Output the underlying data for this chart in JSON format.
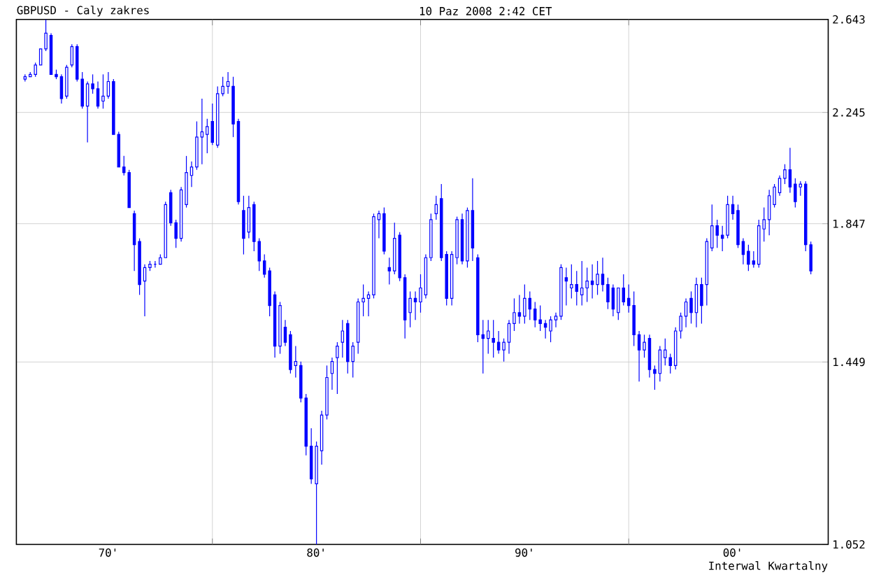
{
  "chart_data": {
    "type": "candlestick",
    "title": "GBPUSD - Caly zakres",
    "subtitle": "10 Paz 2008 2:42 CET",
    "annotations": [
      "Interwal Kwartalny"
    ],
    "color": "#0000ff",
    "log": true,
    "grid": true,
    "xlim": [
      "1970-08",
      "2009-08"
    ],
    "xticks": [
      {
        "value": "1975",
        "label": "70'"
      },
      {
        "value": "1980",
        "label": null
      },
      {
        "value": "1985",
        "label": "80'"
      },
      {
        "value": "1990",
        "label": null
      },
      {
        "value": "1995",
        "label": "90'"
      },
      {
        "value": "2000",
        "label": null
      },
      {
        "value": "2005",
        "label": "00'"
      }
    ],
    "ylim": [
      1.052,
      2.643
    ],
    "yticks": [
      1.052,
      1.449,
      1.847,
      2.245,
      2.643
    ],
    "x": [
      "1971-01",
      "1971-04",
      "1971-07",
      "1971-10",
      "1972-01",
      "1972-04",
      "1972-07",
      "1972-10",
      "1973-01",
      "1973-04",
      "1973-07",
      "1973-10",
      "1974-01",
      "1974-04",
      "1974-07",
      "1974-10",
      "1975-01",
      "1975-04",
      "1975-07",
      "1975-10",
      "1976-01",
      "1976-04",
      "1976-07",
      "1976-10",
      "1977-01",
      "1977-04",
      "1977-07",
      "1977-10",
      "1978-01",
      "1978-04",
      "1978-07",
      "1978-10",
      "1979-01",
      "1979-04",
      "1979-07",
      "1979-10",
      "1980-01",
      "1980-04",
      "1980-07",
      "1980-10",
      "1981-01",
      "1981-04",
      "1981-07",
      "1981-10",
      "1982-01",
      "1982-04",
      "1982-07",
      "1982-10",
      "1983-01",
      "1983-04",
      "1983-07",
      "1983-10",
      "1984-01",
      "1984-04",
      "1984-07",
      "1984-10",
      "1985-01",
      "1985-04",
      "1985-07",
      "1985-10",
      "1986-01",
      "1986-04",
      "1986-07",
      "1986-10",
      "1987-01",
      "1987-04",
      "1987-07",
      "1987-10",
      "1988-01",
      "1988-04",
      "1988-07",
      "1988-10",
      "1989-01",
      "1989-04",
      "1989-07",
      "1989-10",
      "1990-01",
      "1990-04",
      "1990-07",
      "1990-10",
      "1991-01",
      "1991-04",
      "1991-07",
      "1991-10",
      "1992-01",
      "1992-04",
      "1992-07",
      "1992-10",
      "1993-01",
      "1993-04",
      "1993-07",
      "1993-10",
      "1994-01",
      "1994-04",
      "1994-07",
      "1994-10",
      "1995-01",
      "1995-04",
      "1995-07",
      "1995-10",
      "1996-01",
      "1996-04",
      "1996-07",
      "1996-10",
      "1997-01",
      "1997-04",
      "1997-07",
      "1997-10",
      "1998-01",
      "1998-04",
      "1998-07",
      "1998-10",
      "1999-01",
      "1999-04",
      "1999-07",
      "1999-10",
      "2000-01",
      "2000-04",
      "2000-07",
      "2000-10",
      "2001-01",
      "2001-04",
      "2001-07",
      "2001-10",
      "2002-01",
      "2002-04",
      "2002-07",
      "2002-10",
      "2003-01",
      "2003-04",
      "2003-07",
      "2003-10",
      "2004-01",
      "2004-04",
      "2004-07",
      "2004-10",
      "2005-01",
      "2005-04",
      "2005-07",
      "2005-10",
      "2006-01",
      "2006-04",
      "2006-07",
      "2006-10",
      "2007-01",
      "2007-04",
      "2007-07",
      "2007-10",
      "2008-01",
      "2008-04",
      "2008-07",
      "2008-10"
    ],
    "ohlc": [
      [
        2.38,
        2.4,
        2.37,
        2.39
      ],
      [
        2.39,
        2.41,
        2.39,
        2.4
      ],
      [
        2.4,
        2.45,
        2.39,
        2.44
      ],
      [
        2.44,
        2.51,
        2.44,
        2.51
      ],
      [
        2.51,
        2.643,
        2.5,
        2.58
      ],
      [
        2.57,
        2.58,
        2.4,
        2.4
      ],
      [
        2.4,
        2.42,
        2.38,
        2.39
      ],
      [
        2.39,
        2.4,
        2.28,
        2.3
      ],
      [
        2.31,
        2.44,
        2.3,
        2.43
      ],
      [
        2.44,
        2.53,
        2.43,
        2.52
      ],
      [
        2.52,
        2.53,
        2.37,
        2.38
      ],
      [
        2.38,
        2.41,
        2.26,
        2.27
      ],
      [
        2.27,
        2.37,
        2.13,
        2.36
      ],
      [
        2.36,
        2.4,
        2.32,
        2.34
      ],
      [
        2.34,
        2.37,
        2.26,
        2.27
      ],
      [
        2.29,
        2.4,
        2.26,
        2.31
      ],
      [
        2.31,
        2.41,
        2.3,
        2.37
      ],
      [
        2.37,
        2.38,
        2.16,
        2.16
      ],
      [
        2.16,
        2.17,
        2.04,
        2.04
      ],
      [
        2.04,
        2.08,
        2.01,
        2.02
      ],
      [
        2.02,
        2.03,
        1.9,
        1.9
      ],
      [
        1.88,
        1.89,
        1.7,
        1.78
      ],
      [
        1.79,
        1.8,
        1.63,
        1.66
      ],
      [
        1.67,
        1.72,
        1.57,
        1.71
      ],
      [
        1.71,
        1.73,
        1.7,
        1.72
      ],
      [
        1.72,
        1.73,
        1.71,
        1.72
      ],
      [
        1.72,
        1.75,
        1.72,
        1.74
      ],
      [
        1.74,
        1.92,
        1.74,
        1.91
      ],
      [
        1.95,
        1.96,
        1.84,
        1.85
      ],
      [
        1.85,
        1.86,
        1.77,
        1.8
      ],
      [
        1.8,
        1.97,
        1.79,
        1.96
      ],
      [
        1.91,
        2.08,
        1.9,
        2.02
      ],
      [
        2.01,
        2.06,
        1.97,
        2.04
      ],
      [
        2.04,
        2.21,
        2.03,
        2.15
      ],
      [
        2.15,
        2.3,
        2.05,
        2.17
      ],
      [
        2.16,
        2.22,
        2.09,
        2.19
      ],
      [
        2.21,
        2.28,
        2.12,
        2.13
      ],
      [
        2.12,
        2.35,
        2.11,
        2.32
      ],
      [
        2.32,
        2.39,
        2.31,
        2.35
      ],
      [
        2.35,
        2.41,
        2.32,
        2.37
      ],
      [
        2.35,
        2.39,
        2.15,
        2.2
      ],
      [
        2.21,
        2.22,
        1.91,
        1.92
      ],
      [
        1.89,
        1.94,
        1.75,
        1.8
      ],
      [
        1.82,
        1.94,
        1.8,
        1.9
      ],
      [
        1.91,
        1.92,
        1.76,
        1.79
      ],
      [
        1.79,
        1.8,
        1.7,
        1.73
      ],
      [
        1.73,
        1.75,
        1.68,
        1.69
      ],
      [
        1.7,
        1.71,
        1.57,
        1.6
      ],
      [
        1.63,
        1.64,
        1.46,
        1.49
      ],
      [
        1.49,
        1.61,
        1.47,
        1.6
      ],
      [
        1.54,
        1.56,
        1.49,
        1.5
      ],
      [
        1.52,
        1.53,
        1.42,
        1.43
      ],
      [
        1.44,
        1.49,
        1.41,
        1.45
      ],
      [
        1.44,
        1.45,
        1.35,
        1.36
      ],
      [
        1.36,
        1.37,
        1.23,
        1.25
      ],
      [
        1.25,
        1.29,
        1.17,
        1.18
      ],
      [
        1.17,
        1.26,
        1.052,
        1.25
      ],
      [
        1.24,
        1.33,
        1.21,
        1.32
      ],
      [
        1.32,
        1.44,
        1.31,
        1.41
      ],
      [
        1.42,
        1.46,
        1.38,
        1.45
      ],
      [
        1.46,
        1.5,
        1.37,
        1.49
      ],
      [
        1.5,
        1.56,
        1.46,
        1.53
      ],
      [
        1.55,
        1.56,
        1.42,
        1.45
      ],
      [
        1.45,
        1.5,
        1.41,
        1.49
      ],
      [
        1.5,
        1.62,
        1.47,
        1.61
      ],
      [
        1.61,
        1.66,
        1.57,
        1.62
      ],
      [
        1.62,
        1.64,
        1.57,
        1.63
      ],
      [
        1.63,
        1.88,
        1.62,
        1.87
      ],
      [
        1.86,
        1.89,
        1.8,
        1.88
      ],
      [
        1.88,
        1.9,
        1.75,
        1.76
      ],
      [
        1.71,
        1.74,
        1.66,
        1.7
      ],
      [
        1.7,
        1.85,
        1.69,
        1.8
      ],
      [
        1.81,
        1.82,
        1.67,
        1.68
      ],
      [
        1.68,
        1.69,
        1.51,
        1.56
      ],
      [
        1.58,
        1.64,
        1.54,
        1.62
      ],
      [
        1.62,
        1.64,
        1.56,
        1.61
      ],
      [
        1.61,
        1.69,
        1.58,
        1.65
      ],
      [
        1.63,
        1.75,
        1.62,
        1.74
      ],
      [
        1.74,
        1.88,
        1.73,
        1.86
      ],
      [
        1.88,
        1.94,
        1.86,
        1.91
      ],
      [
        1.93,
        1.98,
        1.73,
        1.74
      ],
      [
        1.75,
        1.76,
        1.6,
        1.62
      ],
      [
        1.62,
        1.76,
        1.6,
        1.75
      ],
      [
        1.74,
        1.87,
        1.72,
        1.86
      ],
      [
        1.86,
        1.88,
        1.72,
        1.73
      ],
      [
        1.73,
        1.9,
        1.71,
        1.89
      ],
      [
        1.89,
        2.0,
        1.73,
        1.77
      ],
      [
        1.74,
        1.75,
        1.5,
        1.52
      ],
      [
        1.52,
        1.56,
        1.42,
        1.51
      ],
      [
        1.51,
        1.56,
        1.47,
        1.53
      ],
      [
        1.51,
        1.56,
        1.46,
        1.5
      ],
      [
        1.5,
        1.53,
        1.47,
        1.48
      ],
      [
        1.48,
        1.51,
        1.45,
        1.5
      ],
      [
        1.5,
        1.56,
        1.47,
        1.55
      ],
      [
        1.55,
        1.62,
        1.53,
        1.58
      ],
      [
        1.58,
        1.63,
        1.55,
        1.57
      ],
      [
        1.57,
        1.66,
        1.55,
        1.62
      ],
      [
        1.62,
        1.64,
        1.56,
        1.59
      ],
      [
        1.59,
        1.61,
        1.54,
        1.56
      ],
      [
        1.56,
        1.6,
        1.53,
        1.55
      ],
      [
        1.55,
        1.56,
        1.51,
        1.54
      ],
      [
        1.53,
        1.57,
        1.5,
        1.56
      ],
      [
        1.56,
        1.58,
        1.54,
        1.57
      ],
      [
        1.57,
        1.72,
        1.56,
        1.71
      ],
      [
        1.68,
        1.71,
        1.6,
        1.67
      ],
      [
        1.65,
        1.72,
        1.62,
        1.66
      ],
      [
        1.66,
        1.7,
        1.6,
        1.64
      ],
      [
        1.63,
        1.73,
        1.6,
        1.65
      ],
      [
        1.65,
        1.71,
        1.61,
        1.67
      ],
      [
        1.67,
        1.72,
        1.62,
        1.66
      ],
      [
        1.66,
        1.73,
        1.63,
        1.69
      ],
      [
        1.69,
        1.74,
        1.64,
        1.66
      ],
      [
        1.66,
        1.68,
        1.59,
        1.61
      ],
      [
        1.65,
        1.66,
        1.57,
        1.59
      ],
      [
        1.58,
        1.65,
        1.56,
        1.65
      ],
      [
        1.65,
        1.69,
        1.6,
        1.61
      ],
      [
        1.62,
        1.66,
        1.58,
        1.6
      ],
      [
        1.6,
        1.64,
        1.49,
        1.52
      ],
      [
        1.52,
        1.53,
        1.4,
        1.48
      ],
      [
        1.48,
        1.52,
        1.46,
        1.5
      ],
      [
        1.51,
        1.52,
        1.41,
        1.43
      ],
      [
        1.43,
        1.44,
        1.38,
        1.42
      ],
      [
        1.42,
        1.49,
        1.4,
        1.48
      ],
      [
        1.46,
        1.51,
        1.44,
        1.48
      ],
      [
        1.46,
        1.47,
        1.42,
        1.44
      ],
      [
        1.44,
        1.54,
        1.43,
        1.53
      ],
      [
        1.53,
        1.58,
        1.51,
        1.57
      ],
      [
        1.57,
        1.62,
        1.54,
        1.61
      ],
      [
        1.62,
        1.64,
        1.55,
        1.58
      ],
      [
        1.58,
        1.68,
        1.54,
        1.66
      ],
      [
        1.66,
        1.68,
        1.55,
        1.6
      ],
      [
        1.66,
        1.8,
        1.6,
        1.79
      ],
      [
        1.77,
        1.91,
        1.76,
        1.84
      ],
      [
        1.84,
        1.86,
        1.77,
        1.81
      ],
      [
        1.81,
        1.84,
        1.76,
        1.8
      ],
      [
        1.81,
        1.94,
        1.8,
        1.91
      ],
      [
        1.91,
        1.94,
        1.86,
        1.88
      ],
      [
        1.89,
        1.91,
        1.77,
        1.78
      ],
      [
        1.79,
        1.8,
        1.72,
        1.75
      ],
      [
        1.76,
        1.78,
        1.7,
        1.72
      ],
      [
        1.73,
        1.76,
        1.71,
        1.72
      ],
      [
        1.72,
        1.86,
        1.71,
        1.84
      ],
      [
        1.83,
        1.9,
        1.79,
        1.86
      ],
      [
        1.86,
        1.96,
        1.81,
        1.94
      ],
      [
        1.91,
        1.98,
        1.9,
        1.97
      ],
      [
        1.95,
        2.01,
        1.94,
        2.0
      ],
      [
        2.0,
        2.05,
        1.98,
        2.03
      ],
      [
        2.03,
        2.11,
        1.95,
        1.97
      ],
      [
        1.98,
        2.0,
        1.9,
        1.92
      ],
      [
        1.97,
        1.99,
        1.94,
        1.98
      ],
      [
        1.98,
        1.99,
        1.76,
        1.78
      ],
      [
        1.78,
        1.79,
        1.69,
        1.7
      ]
    ]
  }
}
